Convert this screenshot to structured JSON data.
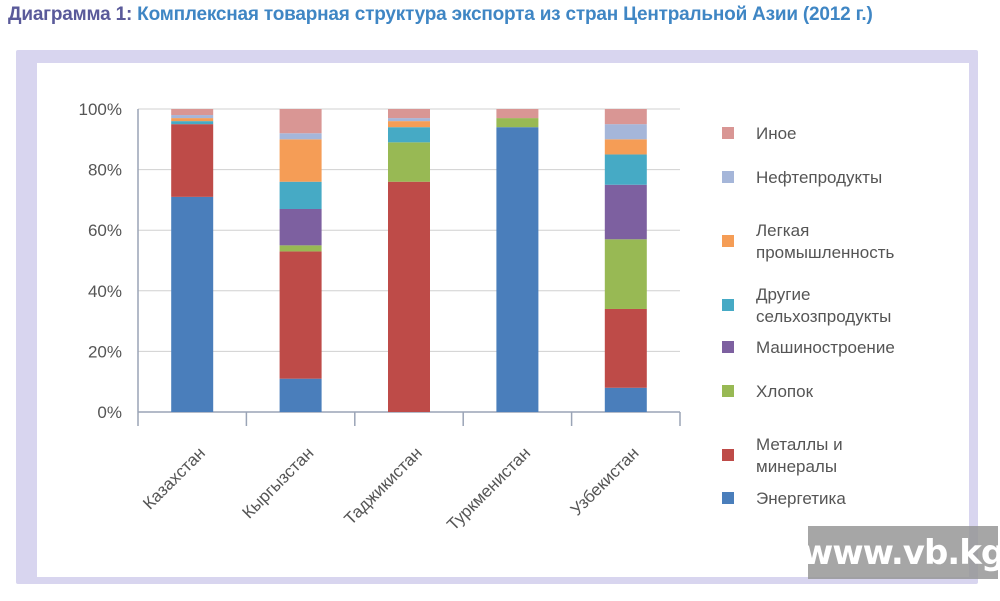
{
  "title_lead": "Диаграмма 1:",
  "title_main": "Комплексная товарная структура экспорта из стран Центральной Азии (2012 г.)",
  "watermark": "www.vb.kg",
  "chart_data": {
    "type": "bar",
    "stacked": true,
    "categories": [
      "Казахстан",
      "Кыргызстан",
      "Таджикистан",
      "Туркменистан",
      "Узбекистан"
    ],
    "ylim": [
      0,
      100
    ],
    "y_ticks": [
      "0%",
      "20%",
      "40%",
      "60%",
      "80%",
      "100%"
    ],
    "grid": true,
    "legend_position": "right",
    "series": [
      {
        "name": "Энергетика",
        "color": "#4a7ebb",
        "values": [
          71,
          11,
          0,
          94,
          8
        ]
      },
      {
        "name": "Металлы и минералы",
        "color": "#be4b48",
        "values": [
          24,
          42,
          76,
          0,
          26
        ]
      },
      {
        "name": "Хлопок",
        "color": "#98b954",
        "values": [
          0,
          2,
          13,
          3,
          23
        ]
      },
      {
        "name": "Машиностроение",
        "color": "#7d60a0",
        "values": [
          0,
          12,
          0,
          0,
          18
        ]
      },
      {
        "name": "Другие сельхозпродукты",
        "color": "#46aac5",
        "values": [
          1,
          9,
          5,
          0,
          10
        ]
      },
      {
        "name": "Легкая промышленность",
        "color": "#f59d56",
        "values": [
          1,
          14,
          2,
          0,
          5
        ]
      },
      {
        "name": "Нефтепродукты",
        "color": "#a5b6d9",
        "values": [
          1,
          2,
          1,
          0,
          5
        ]
      },
      {
        "name": "Иное",
        "color": "#d99694",
        "values": [
          2,
          8,
          3,
          3,
          5
        ]
      }
    ],
    "legend": [
      {
        "lines": [
          "Иное"
        ],
        "color": "#d99694"
      },
      {
        "lines": [
          "Нефтепродукты"
        ],
        "color": "#a5b6d9"
      },
      {
        "lines": [
          "Легкая",
          "промышленность"
        ],
        "color": "#f59d56"
      },
      {
        "lines": [
          "Другие",
          "сельхозпродукты"
        ],
        "color": "#46aac5"
      },
      {
        "lines": [
          "Машиностроение"
        ],
        "color": "#7d60a0"
      },
      {
        "lines": [
          "Хлопок"
        ],
        "color": "#98b954"
      },
      {
        "lines": [
          "Металлы и",
          "минералы"
        ],
        "color": "#be4b48"
      },
      {
        "lines": [
          "Энергетика"
        ],
        "color": "#4a7ebb"
      }
    ]
  }
}
